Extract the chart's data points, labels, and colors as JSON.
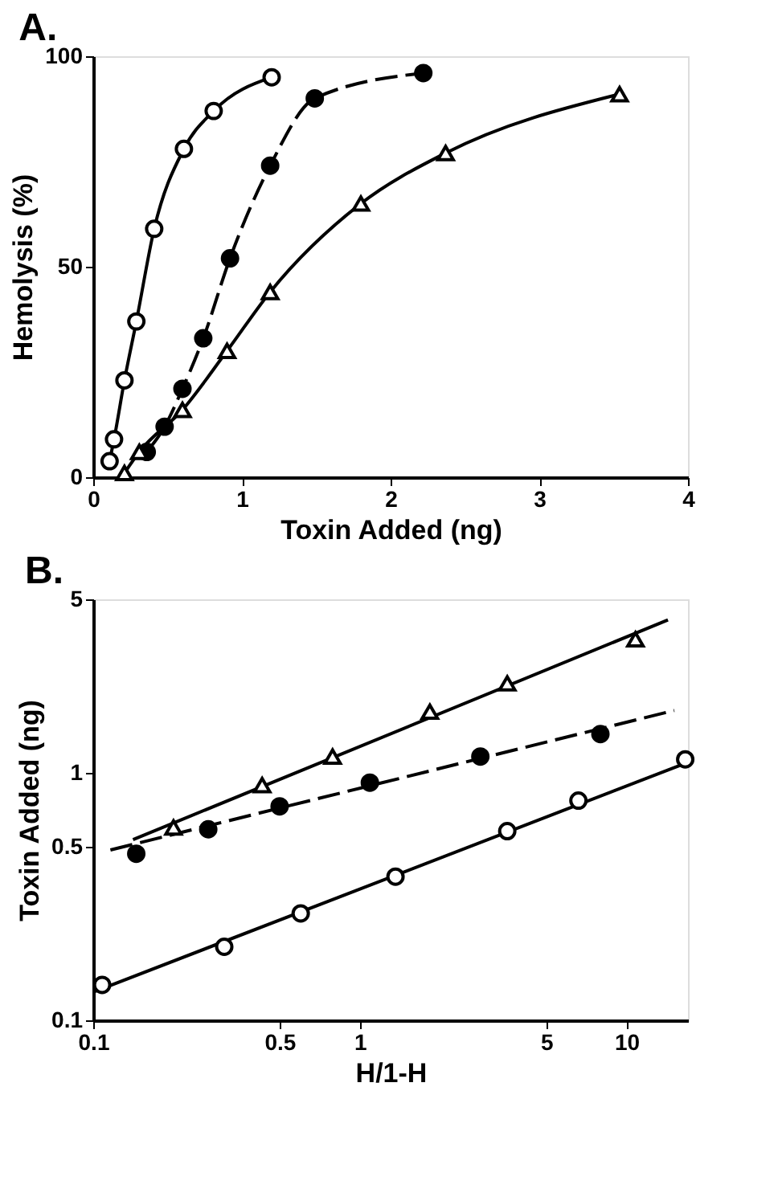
{
  "chart_data": [
    {
      "type": "line",
      "title": "A.",
      "xlabel": "Toxin Added (ng)",
      "ylabel": "Hemolysis (%)",
      "xlim": [
        0,
        4
      ],
      "ylim": [
        0,
        100
      ],
      "xticks": [
        0,
        1,
        2,
        3,
        4
      ],
      "yticks": [
        0,
        50,
        100
      ],
      "grid": false,
      "series": [
        {
          "color": "#000000",
          "marker": "circle",
          "colors": [
            "#ffffff",
            "#ffffff",
            "#ffffff",
            "#ffffff",
            "#ffffff",
            "#ffffff",
            "#ffffff",
            "#ffffff"
          ],
          "line_style": "solid",
          "x": [
            0.11,
            0.14,
            0.21,
            0.29,
            0.41,
            0.61,
            0.81,
            1.2
          ],
          "values": [
            3.8,
            9,
            23,
            37,
            59,
            78,
            87,
            95
          ]
        },
        {
          "color": "#000000",
          "marker": "circle",
          "colors": [
            "#000000",
            "#000000",
            "#000000",
            "#000000",
            "#000000",
            "#000000",
            "#000000",
            "#000000"
          ],
          "line_style": "dashed",
          "x": [
            0.36,
            0.48,
            0.6,
            0.74,
            0.92,
            1.19,
            1.49,
            2.22
          ],
          "values": [
            6,
            12,
            21,
            33,
            52,
            74,
            90,
            96
          ]
        },
        {
          "color": "#000000",
          "marker": "triangle",
          "colors": [
            "#ffffff",
            "#ffffff",
            "#ffffff",
            "#ffffff",
            "#ffffff",
            "#ffffff",
            "#ffffff",
            "#ffffff"
          ],
          "line_style": "solid",
          "x": [
            0.21,
            0.31,
            0.6,
            0.9,
            1.19,
            1.8,
            2.37,
            3.54
          ],
          "values": [
            1,
            6,
            16,
            30,
            44,
            65,
            77,
            91
          ]
        }
      ]
    },
    {
      "type": "scatter",
      "title": "B.",
      "xlabel": "H/1-H",
      "ylabel": "Toxin Added (ng)",
      "log": "xy",
      "xlim": [
        0.1,
        17
      ],
      "ylim": [
        0.1,
        5
      ],
      "xticks": [
        0.1,
        0.5,
        1,
        5,
        10
      ],
      "yticks": [
        0.1,
        0.5,
        1,
        5
      ],
      "grid": false,
      "series": [
        {
          "type": "line",
          "color": "#000000",
          "marker": "none",
          "line_style": "solid",
          "x": [
            0.141,
            14.3
          ],
          "values": [
            0.536,
            4.13
          ]
        },
        {
          "type": "line",
          "color": "#000000",
          "marker": "none",
          "line_style": "dashed",
          "x": [
            0.116,
            15.1
          ],
          "values": [
            0.487,
            1.78
          ]
        },
        {
          "type": "line",
          "color": "#000000",
          "marker": "none",
          "line_style": "solid",
          "x": [
            0.1,
            17
          ],
          "values": [
            0.13,
            1.1
          ]
        },
        {
          "color": "#000000",
          "marker": "triangle",
          "colors": [
            "#ffffff",
            "#ffffff",
            "#ffffff",
            "#ffffff",
            "#ffffff",
            "#ffffff"
          ],
          "x": [
            0.2,
            0.43,
            0.79,
            1.83,
            3.57,
            10.8
          ],
          "values": [
            0.6,
            0.89,
            1.16,
            1.76,
            2.29,
            3.45
          ]
        },
        {
          "color": "#000000",
          "marker": "circle",
          "colors": [
            "#000000",
            "#000000",
            "#000000",
            "#000000",
            "#000000",
            "#000000"
          ],
          "x": [
            0.145,
            0.27,
            0.5,
            1.09,
            2.83,
            7.98
          ],
          "values": [
            0.47,
            0.59,
            0.73,
            0.91,
            1.16,
            1.43
          ]
        },
        {
          "color": "#000000",
          "marker": "circle",
          "colors": [
            "#ffffff",
            "#ffffff",
            "#ffffff",
            "#ffffff",
            "#ffffff",
            "#ffffff",
            "#ffffff"
          ],
          "x": [
            0.108,
            0.31,
            0.6,
            1.36,
            3.57,
            6.6,
            16.6
          ],
          "values": [
            0.139,
            0.198,
            0.27,
            0.38,
            0.58,
            0.77,
            1.13
          ]
        }
      ]
    }
  ]
}
